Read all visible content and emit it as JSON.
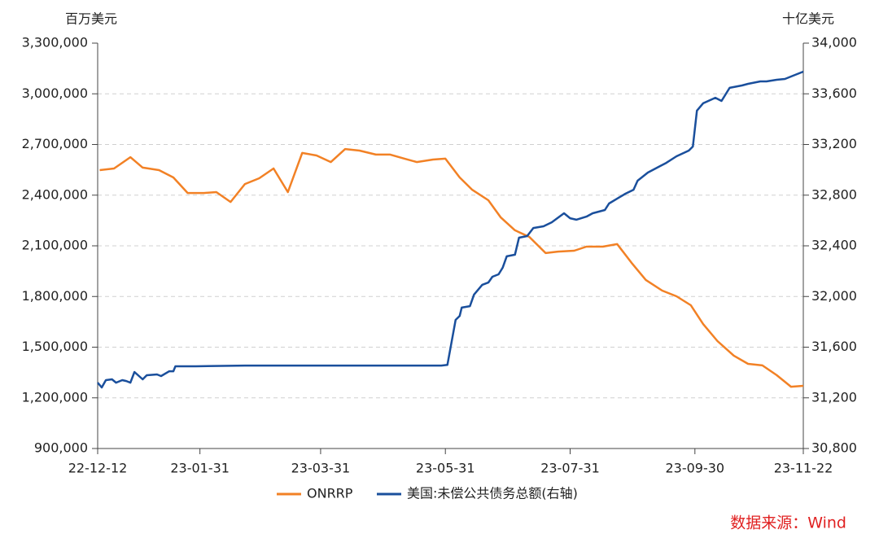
{
  "chart_data": {
    "type": "line",
    "y_label": "百万美元",
    "y2_label": "十亿美元",
    "source": "数据来源：Wind",
    "xlim": [
      "22-12-12",
      "23-11-22"
    ],
    "xticks": [
      "22-12-12",
      "23-01-31",
      "23-03-31",
      "23-05-31",
      "23-07-31",
      "23-09-30",
      "23-11-22"
    ],
    "ylim": [
      900000,
      3300000
    ],
    "yticks": [
      {
        "value": 900000,
        "label": "900,000"
      },
      {
        "value": 1200000,
        "label": "1,200,000"
      },
      {
        "value": 1500000,
        "label": "1,500,000"
      },
      {
        "value": 1800000,
        "label": "1,800,000"
      },
      {
        "value": 2100000,
        "label": "2,100,000"
      },
      {
        "value": 2400000,
        "label": "2,400,000"
      },
      {
        "value": 2700000,
        "label": "2,700,000"
      },
      {
        "value": 3000000,
        "label": "3,000,000"
      },
      {
        "value": 3300000,
        "label": "3,300,000"
      }
    ],
    "y2lim": [
      30800,
      34000
    ],
    "y2ticks": [
      {
        "value": 30800,
        "label": "30,800"
      },
      {
        "value": 31200,
        "label": "31,200"
      },
      {
        "value": 31600,
        "label": "31,600"
      },
      {
        "value": 32000,
        "label": "32,000"
      },
      {
        "value": 32400,
        "label": "32,400"
      },
      {
        "value": 32800,
        "label": "32,800"
      },
      {
        "value": 33200,
        "label": "33,200"
      },
      {
        "value": 33600,
        "label": "33,600"
      },
      {
        "value": 34000,
        "label": "34,000"
      }
    ],
    "grid": true,
    "series": [
      {
        "name": "ONRRP",
        "color": "#f28125",
        "x": [
          "22-12-13",
          "22-12-20",
          "22-12-28",
          "23-01-03",
          "23-01-11",
          "23-01-18",
          "23-01-25",
          "23-02-02",
          "23-02-08",
          "23-02-15",
          "23-02-22",
          "23-03-01",
          "23-03-08",
          "23-03-15",
          "23-03-22",
          "23-03-29",
          "23-04-05",
          "23-04-12",
          "23-04-19",
          "23-04-27",
          "23-05-04",
          "23-05-11",
          "23-05-17",
          "23-05-25",
          "23-05-31",
          "23-06-07",
          "23-06-13",
          "23-06-21",
          "23-06-27",
          "23-07-04",
          "23-07-11",
          "23-07-19",
          "23-07-25",
          "23-08-02",
          "23-08-08",
          "23-08-16",
          "23-08-23",
          "23-08-30",
          "23-09-06",
          "23-09-14",
          "23-09-21",
          "23-09-28",
          "23-10-04",
          "23-10-11",
          "23-10-19",
          "23-10-26",
          "23-11-02",
          "23-11-09",
          "23-11-16",
          "23-11-22"
        ],
        "values": [
          2548000,
          2558000,
          2625000,
          2563000,
          2548000,
          2505000,
          2413000,
          2413000,
          2418000,
          2360000,
          2466000,
          2500000,
          2558000,
          2418000,
          2650000,
          2635000,
          2596000,
          2673000,
          2664000,
          2640000,
          2640000,
          2616000,
          2596000,
          2611000,
          2616000,
          2505000,
          2433000,
          2370000,
          2269000,
          2192000,
          2153000,
          2057000,
          2066000,
          2071000,
          2095000,
          2095000,
          2110000,
          2000000,
          1898000,
          1835000,
          1801000,
          1748000,
          1637000,
          1536000,
          1450000,
          1401000,
          1392000,
          1334000,
          1266000,
          1271000
        ]
      },
      {
        "name": "美国:未偿公共债务总额(右轴)",
        "color": "#1a4f9c",
        "axis": "y2",
        "x": [
          "22-12-12",
          "22-12-14",
          "22-12-16",
          "22-12-19",
          "22-12-21",
          "22-12-24",
          "22-12-26",
          "22-12-28",
          "22-12-30",
          "23-01-03",
          "23-01-05",
          "23-01-10",
          "23-01-12",
          "23-01-16",
          "23-01-18",
          "23-01-19",
          "23-01-29",
          "23-02-22",
          "23-04-03",
          "23-05-29",
          "23-06-01",
          "23-06-05",
          "23-06-07",
          "23-06-08",
          "23-06-12",
          "23-06-14",
          "23-06-18",
          "23-06-21",
          "23-06-23",
          "23-06-26",
          "23-06-28",
          "23-06-30",
          "23-07-04",
          "23-07-06",
          "23-07-10",
          "23-07-13",
          "23-07-18",
          "23-07-22",
          "23-07-28",
          "23-07-31",
          "23-08-03",
          "23-08-08",
          "23-08-11",
          "23-08-17",
          "23-08-19",
          "23-08-27",
          "23-08-31",
          "23-09-02",
          "23-09-07",
          "23-09-13",
          "23-09-16",
          "23-09-21",
          "23-09-27",
          "23-09-29",
          "23-10-01",
          "23-10-04",
          "23-10-10",
          "23-10-13",
          "23-10-17",
          "23-10-23",
          "23-10-26",
          "23-11-01",
          "23-11-04",
          "23-11-09",
          "23-11-13",
          "23-11-17",
          "23-11-22"
        ],
        "values": [
          31320,
          31282,
          31340,
          31346,
          31320,
          31340,
          31333,
          31320,
          31404,
          31346,
          31378,
          31385,
          31372,
          31410,
          31410,
          31449,
          31449,
          31455,
          31455,
          31455,
          31460,
          31815,
          31847,
          31912,
          31924,
          32015,
          32092,
          32110,
          32156,
          32175,
          32227,
          32317,
          32330,
          32464,
          32477,
          32541,
          32554,
          32586,
          32657,
          32618,
          32606,
          32631,
          32657,
          32683,
          32734,
          32811,
          32843,
          32914,
          32978,
          33030,
          33055,
          33107,
          33152,
          33184,
          33467,
          33525,
          33569,
          33544,
          33647,
          33666,
          33679,
          33698,
          33698,
          33711,
          33717,
          33743,
          33775
        ]
      }
    ]
  }
}
